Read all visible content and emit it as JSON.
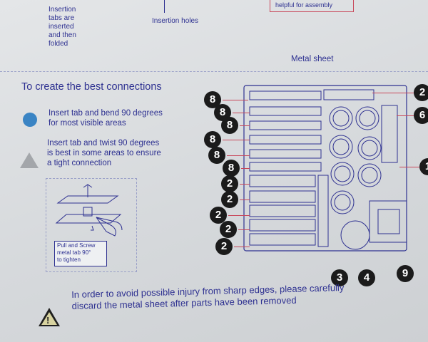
{
  "top": {
    "insertion_tabs_note": [
      "Insertion",
      "tabs are",
      "inserted",
      "and then",
      "folded"
    ],
    "insertion_holes_label": "Insertion holes",
    "callout_text": "helpful for assembly",
    "metal_sheet_label": "Metal sheet"
  },
  "connections": {
    "heading": "To create the best connections",
    "tip_bend": [
      "Insert tab and bend 90 degrees",
      "for most visible areas"
    ],
    "tip_twist": [
      "Insert tab and twist 90 degrees",
      "is best in some areas to ensure",
      "a tight connection"
    ],
    "illus_caption": [
      "Pull and Screw",
      "metal tab 90°",
      "to tighten"
    ]
  },
  "part_numbers": {
    "left_column": [
      "8",
      "8",
      "8",
      "8",
      "8",
      "8",
      "2",
      "2",
      "2",
      "2",
      "2"
    ],
    "right_edge": [
      "2",
      "6",
      "1"
    ],
    "bottom": [
      "3",
      "4",
      "9"
    ]
  },
  "warning": {
    "line1": "In order to avoid possible injury from sharp edges, please carefully",
    "line2": "discard the metal sheet after parts have been removed"
  },
  "colors": {
    "ink": "#2e3191",
    "leader": "#c8475a",
    "badge": "#1b1b1b",
    "bend_dot": "#3a84c4",
    "twist_triangle": "#a3a6aa"
  }
}
